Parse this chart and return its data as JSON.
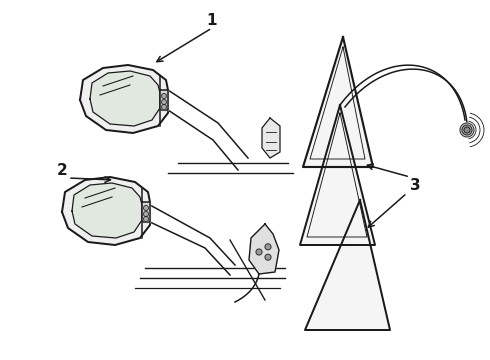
{
  "background_color": "#ffffff",
  "line_color": "#1a1a1a",
  "label1": "1",
  "label2": "2",
  "label3": "3",
  "figsize": [
    4.9,
    3.6
  ],
  "dpi": 100
}
